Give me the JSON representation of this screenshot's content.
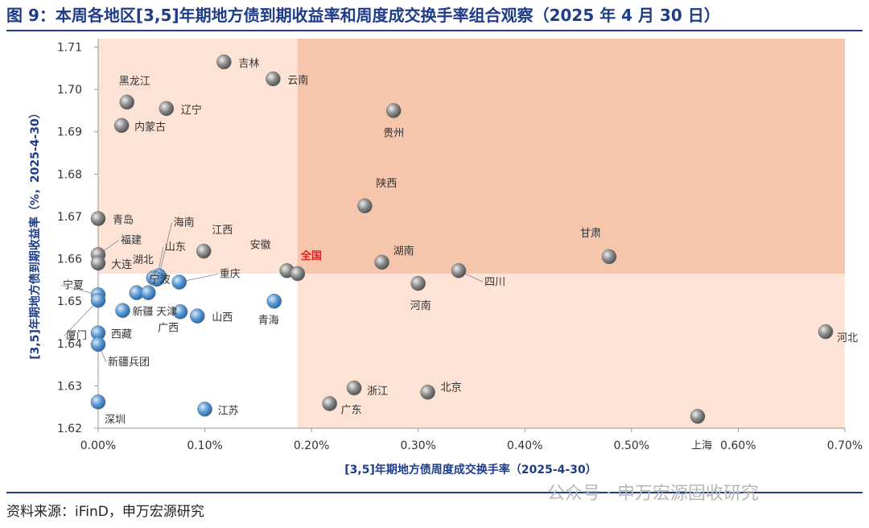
{
  "header": {
    "figure_title": "图 9：本周各地区[3,5]年期地方债到期收益率和周度成交换手率组合观察（2025 年 4 月 30 日）"
  },
  "footer": {
    "source": "资料来源：iFinD，申万宏源研究",
    "watermark": "公众号 · 申万宏源固收研究"
  },
  "colors": {
    "title": "#1f3c88",
    "rule": "#1f3c88",
    "shade_light": "#fde3d6",
    "shade_dark": "#f6c6ac",
    "blue_point": "#5b9bd5",
    "gray_point": "#8c8c8c",
    "highlight_label": "#e02020"
  },
  "chart_data": {
    "type": "scatter",
    "title": "",
    "xlabel": "[3,5]年期地方债周度成交换手率（2025-4-30）",
    "ylabel": "[3,5]年期地方债到期收益率（%，2025-4-30）",
    "xlim": [
      0,
      0.007
    ],
    "ylim": [
      1.62,
      1.712
    ],
    "x_ticks": [
      0,
      0.001,
      0.002,
      0.003,
      0.004,
      0.005,
      0.006,
      0.007
    ],
    "x_tick_labels": [
      "0.00%",
      "0.10%",
      "0.20%",
      "0.30%",
      "0.40%",
      "0.50%",
      "0.60%",
      "0.70%"
    ],
    "y_ticks": [
      1.62,
      1.63,
      1.64,
      1.65,
      1.66,
      1.67,
      1.68,
      1.69,
      1.7,
      1.71
    ],
    "y_tick_labels": [
      "1.62",
      "1.63",
      "1.64",
      "1.65",
      "1.66",
      "1.67",
      "1.68",
      "1.69",
      "1.70",
      "1.71"
    ],
    "reference": {
      "name": "全国",
      "x": 0.00187,
      "y": 1.6565
    },
    "points": [
      {
        "name": "吉林",
        "x": 0.00118,
        "y": 1.7065,
        "group": "high-low"
      },
      {
        "name": "云南",
        "x": 0.00164,
        "y": 1.7025,
        "group": "high-low"
      },
      {
        "name": "黑龙江",
        "x": 0.00027,
        "y": 1.697,
        "group": "high-low"
      },
      {
        "name": "辽宁",
        "x": 0.00064,
        "y": 1.6955,
        "group": "high-low"
      },
      {
        "name": "内蒙古",
        "x": 0.00022,
        "y": 1.6915,
        "group": "high-low"
      },
      {
        "name": "贵州",
        "x": 0.00277,
        "y": 1.695,
        "group": "high-high"
      },
      {
        "name": "陕西",
        "x": 0.0025,
        "y": 1.6725,
        "group": "high-high"
      },
      {
        "name": "青岛",
        "x": 0.0,
        "y": 1.6695,
        "group": "high-low"
      },
      {
        "name": "福建",
        "x": 0.0,
        "y": 1.661,
        "group": "high-low"
      },
      {
        "name": "大连",
        "x": 0.0,
        "y": 1.659,
        "group": "high-low"
      },
      {
        "name": "江西",
        "x": 0.00099,
        "y": 1.6618,
        "group": "high-low"
      },
      {
        "name": "海南",
        "x": 0.00057,
        "y": 1.656,
        "group": "low-low"
      },
      {
        "name": "湖北",
        "x": 0.00052,
        "y": 1.6555,
        "group": "low-low"
      },
      {
        "name": "山东",
        "x": 0.00055,
        "y": 1.6552,
        "group": "low-low"
      },
      {
        "name": "安徽",
        "x": 0.00177,
        "y": 1.6572,
        "group": "high-low"
      },
      {
        "name": "湖南",
        "x": 0.00266,
        "y": 1.6592,
        "group": "high-high"
      },
      {
        "name": "甘肃",
        "x": 0.00479,
        "y": 1.6605,
        "group": "high-high"
      },
      {
        "name": "四川",
        "x": 0.00338,
        "y": 1.6572,
        "group": "high-high"
      },
      {
        "name": "重庆",
        "x": 0.00076,
        "y": 1.6545,
        "group": "low-low"
      },
      {
        "name": "河南",
        "x": 0.003,
        "y": 1.6542,
        "group": "low-high"
      },
      {
        "name": "宁夏",
        "x": 0.0,
        "y": 1.6515,
        "group": "low-low"
      },
      {
        "name": "厦门",
        "x": 0.0,
        "y": 1.6502,
        "group": "low-low"
      },
      {
        "name": "宁波",
        "x": 0.00036,
        "y": 1.652,
        "group": "low-low"
      },
      {
        "name": "天津",
        "x": 0.00047,
        "y": 1.652,
        "group": "low-low"
      },
      {
        "name": "新疆",
        "x": 0.00023,
        "y": 1.6478,
        "group": "low-low"
      },
      {
        "name": "广西",
        "x": 0.00077,
        "y": 1.6475,
        "group": "low-low"
      },
      {
        "name": "山西",
        "x": 0.00093,
        "y": 1.6465,
        "group": "low-low"
      },
      {
        "name": "青海",
        "x": 0.00165,
        "y": 1.65,
        "group": "low-low"
      },
      {
        "name": "西藏",
        "x": 0.0,
        "y": 1.6425,
        "group": "low-low"
      },
      {
        "name": "新疆兵团",
        "x": 0.0,
        "y": 1.6398,
        "group": "low-low"
      },
      {
        "name": "河北",
        "x": 0.00682,
        "y": 1.6428,
        "group": "low-high"
      },
      {
        "name": "浙江",
        "x": 0.0024,
        "y": 1.6295,
        "group": "low-high"
      },
      {
        "name": "北京",
        "x": 0.00309,
        "y": 1.6285,
        "group": "low-high"
      },
      {
        "name": "广东",
        "x": 0.00217,
        "y": 1.6258,
        "group": "low-high"
      },
      {
        "name": "江苏",
        "x": 0.001,
        "y": 1.6245,
        "group": "low-low"
      },
      {
        "name": "深圳",
        "x": 0.0,
        "y": 1.6262,
        "group": "low-low"
      },
      {
        "name": "上海",
        "x": 0.00562,
        "y": 1.6228,
        "group": "low-high"
      }
    ]
  }
}
